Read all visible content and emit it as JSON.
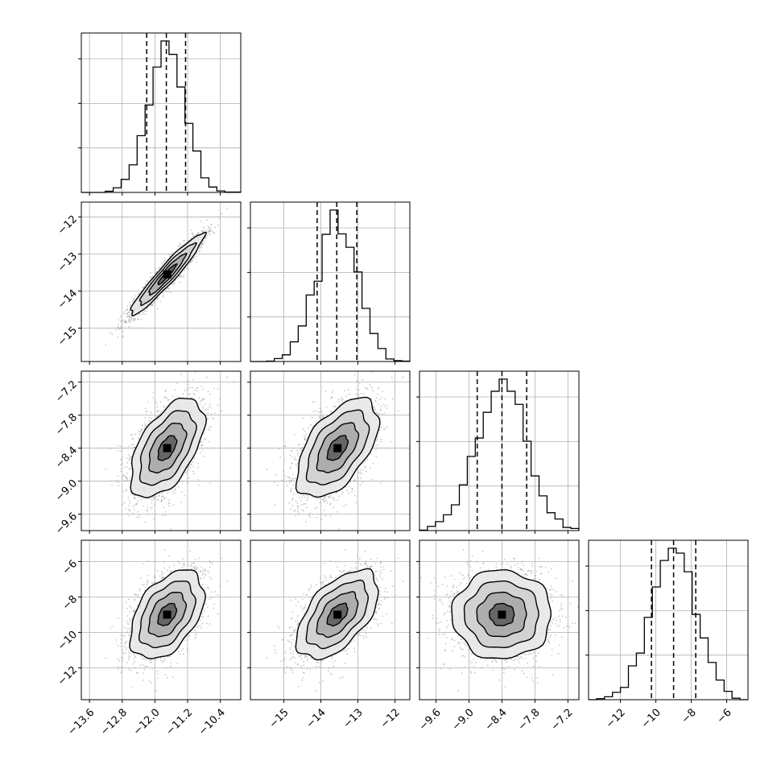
{
  "chart_data": {
    "type": "corner",
    "parameters": [
      {
        "range": [
          -13.8,
          -9.9
        ],
        "mean": -11.7,
        "sigma": 0.45,
        "q16": -12.2,
        "q50": -11.72,
        "q84": -11.25,
        "tick_values": [
          -13.6,
          -12.8,
          -12.0,
          -11.2,
          -10.4
        ],
        "tick_labels": [
          "−13.6",
          "−12.8",
          "−12.0",
          "−11.2",
          "−10.4"
        ]
      },
      {
        "range": [
          -15.9,
          -11.6
        ],
        "mean": -13.55,
        "sigma": 0.55,
        "q16": -14.1,
        "q50": -13.57,
        "q84": -13.03,
        "tick_values": [
          -15,
          -14,
          -13,
          -12
        ],
        "tick_labels": [
          "−15",
          "−14",
          "−13",
          "−12"
        ]
      },
      {
        "range": [
          -9.9,
          -7.0
        ],
        "mean": -8.4,
        "sigma": 0.45,
        "q16": -8.85,
        "q50": -8.4,
        "q84": -7.95,
        "tick_values": [
          -9.6,
          -9.0,
          -8.4,
          -7.8,
          -7.2
        ],
        "tick_labels": [
          "−9.6",
          "−9.0",
          "−8.4",
          "−7.8",
          "−7.2"
        ]
      },
      {
        "range": [
          -13.8,
          -4.8
        ],
        "mean": -9.0,
        "sigma": 1.25,
        "q16": -10.25,
        "q50": -9.0,
        "q84": -7.75,
        "tick_values": [
          -12,
          -10,
          -8,
          -6
        ],
        "tick_labels": [
          "−12",
          "−10",
          "−8",
          "−6"
        ]
      }
    ],
    "correlations": [
      [
        1,
        0.95,
        0.55,
        0.45
      ],
      [
        0.95,
        1,
        0.55,
        0.55
      ],
      [
        0.55,
        0.55,
        1,
        0.0
      ],
      [
        0.45,
        0.55,
        0.0,
        1
      ]
    ],
    "histogram_bins": 20,
    "contour_levels_sigma": [
      0.5,
      1.0,
      1.5,
      2.0
    ],
    "grid": true,
    "colors": {
      "points": "#9a9a9a",
      "lines": "#000000",
      "grid": "#b0b0b0"
    }
  }
}
